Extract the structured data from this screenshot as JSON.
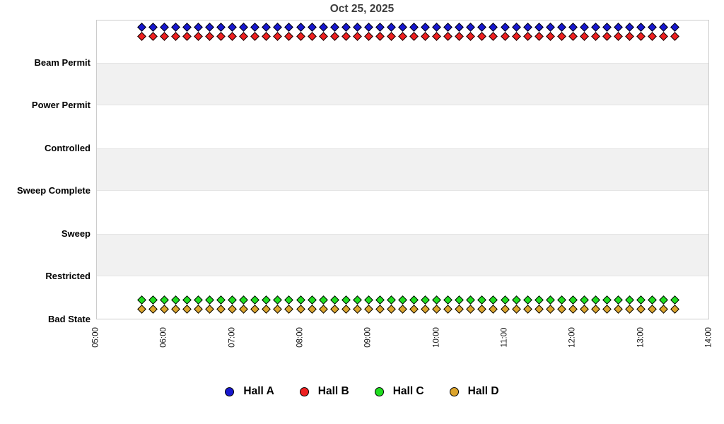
{
  "title": "Oct 25, 2025",
  "chart_data": {
    "type": "scatter",
    "title": "Oct 25, 2025",
    "x_axis": {
      "tick_labels": [
        "05:00",
        "06:00",
        "07:00",
        "08:00",
        "09:00",
        "10:00",
        "11:00",
        "12:00",
        "13:00",
        "14:00"
      ],
      "range_hours": [
        5,
        14
      ]
    },
    "y_axis": {
      "categories_top_to_bottom": [
        "Beam Permit",
        "Power Permit",
        "Controlled",
        "Sweep Complete",
        "Sweep",
        "Restricted",
        "Bad State"
      ]
    },
    "sampling": {
      "start": "05:40",
      "end": "13:30",
      "interval_minutes": 10,
      "num_points": 48
    },
    "series": [
      {
        "name": "Hall A",
        "color": "#1717cf",
        "state": "Beam Permit"
      },
      {
        "name": "Hall B",
        "color": "#ee2020",
        "state": "Beam Permit"
      },
      {
        "name": "Hall C",
        "color": "#1fdd1f",
        "state": "Bad State"
      },
      {
        "name": "Hall D",
        "color": "#dca42c",
        "state": "Bad State"
      }
    ],
    "legend_position": "bottom",
    "band_shading": true,
    "grid": "horizontal-bands"
  },
  "legend": {
    "items": [
      {
        "label": "Hall A",
        "color": "#1717cf"
      },
      {
        "label": "Hall B",
        "color": "#ee2020"
      },
      {
        "label": "Hall C",
        "color": "#1fdd1f"
      },
      {
        "label": "Hall D",
        "color": "#dca42c"
      }
    ]
  }
}
